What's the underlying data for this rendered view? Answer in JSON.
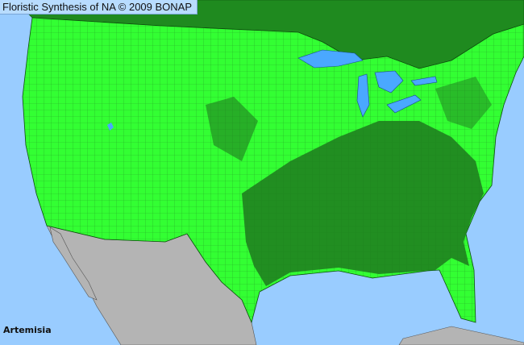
{
  "header": {
    "title": "Floristic Synthesis of NA © 2009 BONAP"
  },
  "map": {
    "taxon": "Artemisia",
    "colors": {
      "ocean": "#99ccff",
      "canada": "#1f8a1f",
      "present_state": "#33ff33",
      "present_county_dark": "#1f7a1f",
      "mexico": "#b4b4b4",
      "lakes": "#4aa8ff"
    }
  }
}
